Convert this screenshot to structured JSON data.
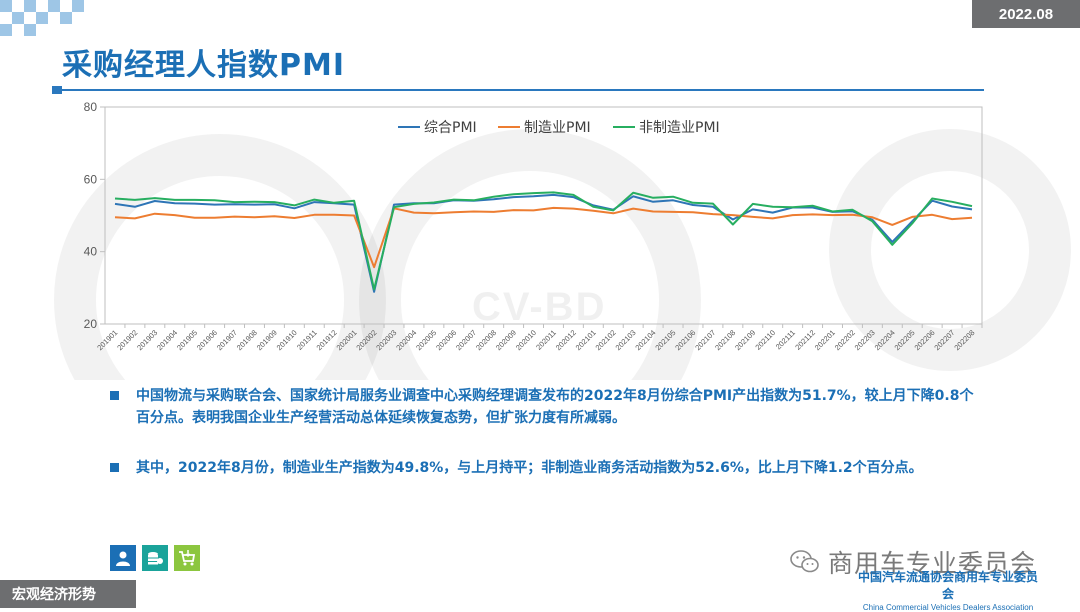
{
  "header": {
    "date": "2022.08",
    "title": "采购经理人指数PMI"
  },
  "colors": {
    "accent": "#1b6fb5",
    "gray": "#6d6e70",
    "composite": "#2e75b6",
    "manufacturing": "#ed7d31",
    "non_manufacturing": "#27ae60"
  },
  "watermark": {
    "text": "CV-BD"
  },
  "chart_data": {
    "type": "line",
    "title": "",
    "xlabel": "",
    "ylabel": "",
    "ylim": [
      20,
      80
    ],
    "yticks": [
      20,
      40,
      60,
      80
    ],
    "grid": false,
    "legend_position": "top-center",
    "categories": [
      "201901",
      "201902",
      "201903",
      "201904",
      "201905",
      "201906",
      "201907",
      "201908",
      "201909",
      "201910",
      "201911",
      "201912",
      "202001",
      "202002",
      "202003",
      "202004",
      "202005",
      "202006",
      "202007",
      "202008",
      "202009",
      "202010",
      "202011",
      "202012",
      "202101",
      "202102",
      "202103",
      "202104",
      "202105",
      "202106",
      "202107",
      "202108",
      "202109",
      "202110",
      "202111",
      "202112",
      "202201",
      "202202",
      "202203",
      "202204",
      "202205",
      "202206",
      "202207",
      "202208"
    ],
    "series": [
      {
        "name": "综合PMI",
        "color": "#2e75b6",
        "values": [
          53.2,
          52.4,
          54.0,
          53.4,
          53.3,
          53.0,
          53.1,
          53.0,
          53.1,
          52.0,
          53.7,
          53.4,
          53.0,
          28.9,
          53.0,
          53.4,
          53.4,
          54.2,
          54.1,
          54.5,
          55.1,
          55.3,
          55.7,
          55.1,
          52.8,
          51.6,
          55.3,
          53.8,
          54.2,
          52.9,
          52.4,
          48.9,
          51.7,
          50.8,
          52.2,
          52.2,
          51.0,
          51.2,
          48.8,
          42.7,
          48.4,
          54.1,
          52.5,
          51.7
        ]
      },
      {
        "name": "制造业PMI",
        "color": "#ed7d31",
        "values": [
          49.5,
          49.2,
          50.5,
          50.1,
          49.4,
          49.4,
          49.7,
          49.5,
          49.8,
          49.3,
          50.2,
          50.2,
          50.0,
          35.7,
          52.0,
          50.8,
          50.6,
          50.9,
          51.1,
          51.0,
          51.5,
          51.4,
          52.1,
          51.9,
          51.3,
          50.6,
          51.9,
          51.1,
          51.0,
          50.9,
          50.4,
          50.1,
          49.6,
          49.2,
          50.1,
          50.3,
          50.1,
          50.2,
          49.5,
          47.4,
          49.6,
          50.2,
          49.0,
          49.4
        ]
      },
      {
        "name": "非制造业PMI",
        "color": "#27ae60",
        "values": [
          54.7,
          54.3,
          54.8,
          54.3,
          54.3,
          54.2,
          53.7,
          53.8,
          53.7,
          52.8,
          54.4,
          53.5,
          54.1,
          29.6,
          52.3,
          53.2,
          53.6,
          54.4,
          54.2,
          55.2,
          55.9,
          56.2,
          56.4,
          55.7,
          52.4,
          51.4,
          56.3,
          54.9,
          55.2,
          53.5,
          53.3,
          47.5,
          53.2,
          52.4,
          52.3,
          52.7,
          51.1,
          51.6,
          48.4,
          41.9,
          47.8,
          54.7,
          53.8,
          52.6
        ]
      }
    ]
  },
  "bullets": [
    {
      "text": "中国物流与采购联合会、国家统计局服务业调查中心采购经理调查发布的2022年8月份综合PMI产出指数为51.7%，较上月下降0.8个百分点。表明我国企业生产经营活动总体延续恢复态势，但扩张力度有所减弱。"
    },
    {
      "text": "其中，2022年8月份，制造业生产指数为49.8%，与上月持平；非制造业商务活动指数为52.6%，比上月下降1.2个百分点。"
    }
  ],
  "icons": [
    {
      "name": "person-icon",
      "color": "#1b6fb5"
    },
    {
      "name": "coins-icon",
      "color": "#1aa39a"
    },
    {
      "name": "cart-icon",
      "color": "#8cc63f"
    }
  ],
  "footer": {
    "section": "宏观经济形势",
    "wechat_name": "商用车专业委员会",
    "assoc_cn": "中国汽车流通协会商用车专业委员会",
    "assoc_en": "China Commercial Vehicles Dealers Association"
  }
}
